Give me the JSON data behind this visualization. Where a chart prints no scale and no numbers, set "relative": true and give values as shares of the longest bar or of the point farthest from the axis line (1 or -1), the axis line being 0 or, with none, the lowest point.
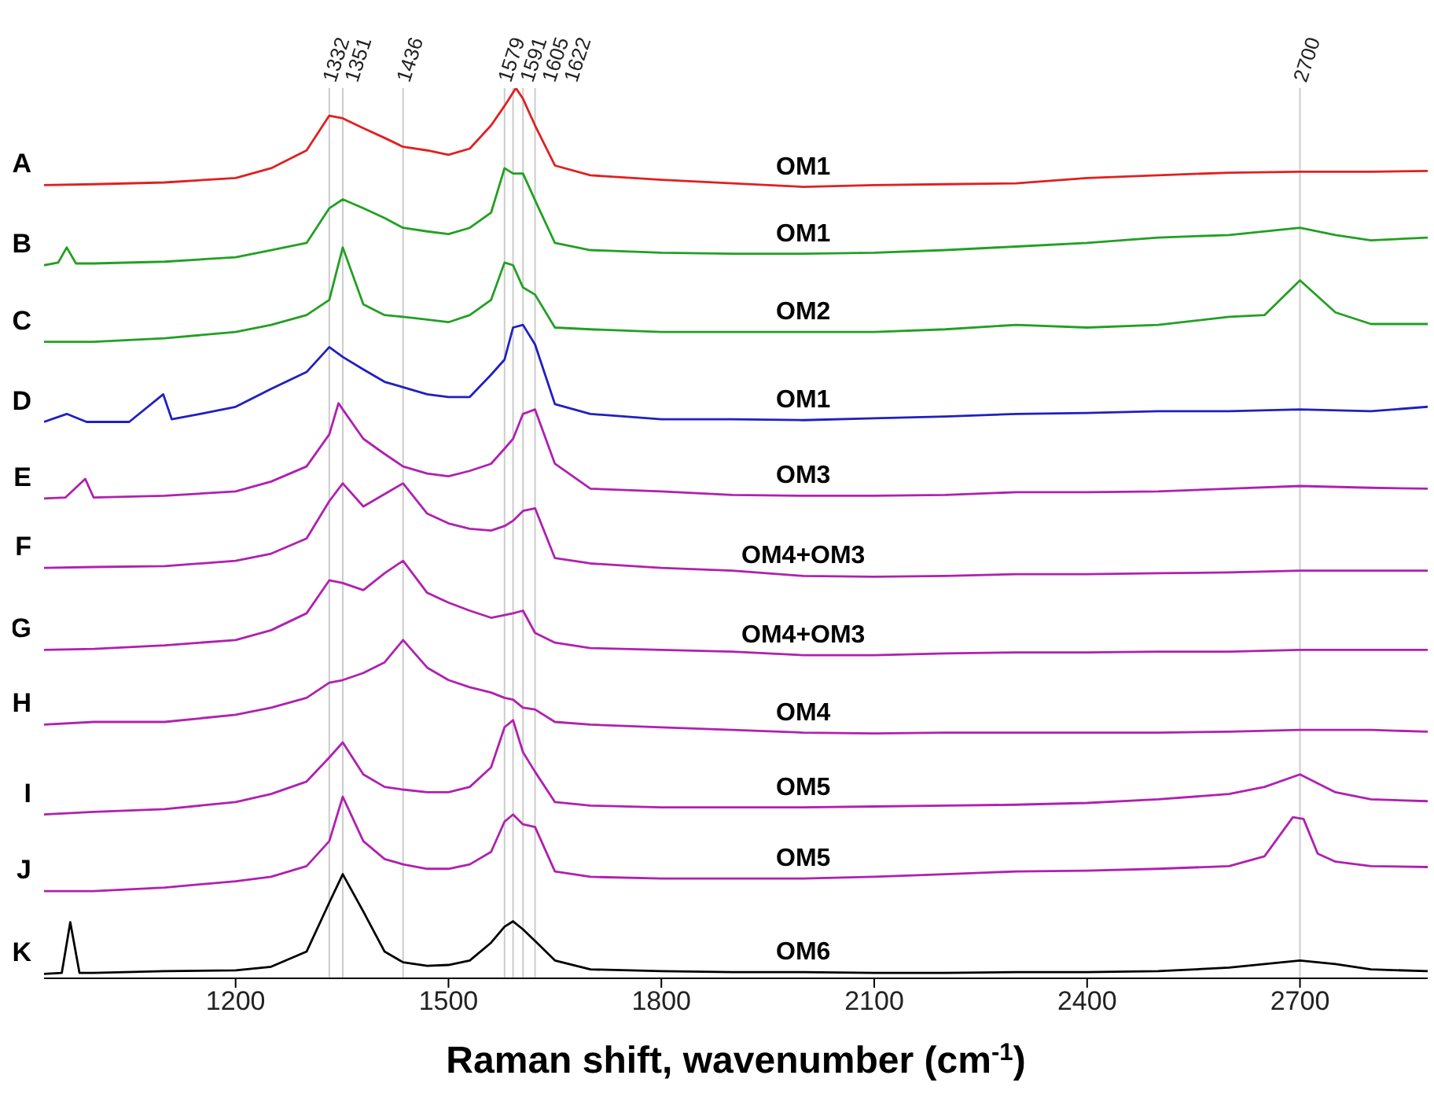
{
  "chart_data": {
    "type": "line",
    "relative": true,
    "xlabel": "Raman shift, wavenumber (cm$^{-1}$)",
    "xlim": [
      930,
      2880
    ],
    "xticks": [
      1200,
      1500,
      1800,
      2100,
      2400,
      2700
    ],
    "line_style": "solid",
    "ref_lines": [
      {
        "axis": "x",
        "value": 1332,
        "label": "1332",
        "color": "#cccccc"
      },
      {
        "axis": "x",
        "value": 1351,
        "label": "1351",
        "color": "#cccccc"
      },
      {
        "axis": "x",
        "value": 1436,
        "label": "1436",
        "color": "#cccccc"
      },
      {
        "axis": "x",
        "value": 1579,
        "label": "1579",
        "color": "#cccccc"
      },
      {
        "axis": "x",
        "value": 1591,
        "label": "1591",
        "color": "#cccccc"
      },
      {
        "axis": "x",
        "value": 1605,
        "label": "1605",
        "color": "#cccccc"
      },
      {
        "axis": "x",
        "value": 1622,
        "label": "1622",
        "color": "#cccccc"
      },
      {
        "axis": "x",
        "value": 2700,
        "label": "2700",
        "color": "#cccccc"
      }
    ],
    "annotations": [
      "OM1",
      "OM1",
      "OM2",
      "OM1",
      "OM3",
      "OM4+OM3",
      "OM4+OM3",
      "OM4",
      "OM5",
      "OM5",
      "OM6"
    ],
    "series": [
      {
        "name": "A",
        "color": "#e02020",
        "x": [
          930,
          1000,
          1100,
          1200,
          1250,
          1300,
          1332,
          1351,
          1380,
          1410,
          1436,
          1470,
          1500,
          1530,
          1560,
          1579,
          1595,
          1605,
          1622,
          1650,
          1700,
          1800,
          1900,
          2000,
          2100,
          2200,
          2300,
          2400,
          2500,
          2600,
          2700,
          2800,
          2880
        ],
        "values": [
          0.891,
          0.892,
          0.894,
          0.899,
          0.91,
          0.93,
          0.969,
          0.966,
          0.955,
          0.944,
          0.934,
          0.93,
          0.925,
          0.932,
          0.958,
          0.98,
          1,
          0.988,
          0.958,
          0.913,
          0.902,
          0.897,
          0.893,
          0.889,
          0.891,
          0.892,
          0.893,
          0.899,
          0.902,
          0.905,
          0.906,
          0.906,
          0.907
        ]
      },
      {
        "name": "B",
        "color": "#22a022",
        "x": [
          930,
          950,
          962,
          975,
          1000,
          1100,
          1200,
          1250,
          1300,
          1332,
          1351,
          1380,
          1410,
          1436,
          1470,
          1500,
          1530,
          1560,
          1579,
          1591,
          1605,
          1622,
          1650,
          1700,
          1800,
          1900,
          2000,
          2100,
          2200,
          2300,
          2400,
          2500,
          2600,
          2700,
          2750,
          2800,
          2880
        ],
        "values": [
          0.801,
          0.804,
          0.821,
          0.803,
          0.803,
          0.805,
          0.81,
          0.818,
          0.826,
          0.865,
          0.875,
          0.865,
          0.854,
          0.843,
          0.839,
          0.836,
          0.843,
          0.86,
          0.91,
          0.904,
          0.904,
          0.874,
          0.826,
          0.818,
          0.815,
          0.814,
          0.814,
          0.815,
          0.818,
          0.822,
          0.826,
          0.832,
          0.835,
          0.843,
          0.835,
          0.829,
          0.832
        ]
      },
      {
        "name": "C",
        "color": "#22a022",
        "x": [
          930,
          1000,
          1100,
          1200,
          1250,
          1300,
          1332,
          1351,
          1380,
          1410,
          1436,
          1470,
          1500,
          1530,
          1560,
          1579,
          1591,
          1605,
          1622,
          1650,
          1700,
          1800,
          1900,
          2000,
          2100,
          2200,
          2300,
          2400,
          2500,
          2600,
          2650,
          2700,
          2750,
          2800,
          2880
        ],
        "values": [
          0.715,
          0.715,
          0.719,
          0.726,
          0.734,
          0.745,
          0.762,
          0.821,
          0.757,
          0.745,
          0.743,
          0.74,
          0.737,
          0.745,
          0.762,
          0.804,
          0.801,
          0.776,
          0.768,
          0.731,
          0.729,
          0.726,
          0.726,
          0.726,
          0.726,
          0.729,
          0.734,
          0.731,
          0.734,
          0.743,
          0.745,
          0.784,
          0.748,
          0.735,
          0.735
        ]
      },
      {
        "name": "D",
        "color": "#2020c0",
        "x": [
          930,
          962,
          990,
          1050,
          1098,
          1110,
          1150,
          1200,
          1250,
          1300,
          1332,
          1351,
          1380,
          1410,
          1436,
          1470,
          1500,
          1530,
          1560,
          1579,
          1591,
          1605,
          1622,
          1650,
          1700,
          1800,
          1900,
          2000,
          2100,
          2200,
          2300,
          2400,
          2500,
          2600,
          2700,
          2800,
          2880
        ],
        "values": [
          0.625,
          0.634,
          0.625,
          0.625,
          0.656,
          0.628,
          0.634,
          0.642,
          0.662,
          0.681,
          0.709,
          0.698,
          0.684,
          0.67,
          0.664,
          0.656,
          0.653,
          0.653,
          0.678,
          0.695,
          0.731,
          0.734,
          0.712,
          0.645,
          0.634,
          0.628,
          0.628,
          0.627,
          0.629,
          0.631,
          0.634,
          0.635,
          0.637,
          0.637,
          0.639,
          0.637,
          0.642
        ]
      },
      {
        "name": "E",
        "color": "#b020b0",
        "x": [
          930,
          960,
          988,
          1000,
          1100,
          1200,
          1250,
          1300,
          1332,
          1345,
          1351,
          1380,
          1410,
          1436,
          1470,
          1500,
          1530,
          1560,
          1579,
          1591,
          1605,
          1622,
          1650,
          1700,
          1800,
          1900,
          2000,
          2100,
          2200,
          2300,
          2400,
          2500,
          2600,
          2700,
          2800,
          2880
        ],
        "values": [
          0.539,
          0.54,
          0.561,
          0.54,
          0.542,
          0.547,
          0.558,
          0.575,
          0.611,
          0.646,
          0.639,
          0.606,
          0.589,
          0.575,
          0.567,
          0.564,
          0.57,
          0.578,
          0.595,
          0.606,
          0.634,
          0.639,
          0.578,
          0.55,
          0.547,
          0.543,
          0.542,
          0.542,
          0.543,
          0.546,
          0.546,
          0.547,
          0.55,
          0.553,
          0.551,
          0.55
        ]
      },
      {
        "name": "F",
        "color": "#b020b0",
        "x": [
          930,
          1000,
          1100,
          1200,
          1250,
          1300,
          1332,
          1351,
          1380,
          1410,
          1436,
          1470,
          1500,
          1530,
          1560,
          1579,
          1591,
          1605,
          1622,
          1650,
          1700,
          1800,
          1900,
          2000,
          2100,
          2200,
          2300,
          2400,
          2500,
          2600,
          2700,
          2800,
          2880
        ],
        "values": [
          0.461,
          0.462,
          0.463,
          0.469,
          0.477,
          0.494,
          0.536,
          0.556,
          0.53,
          0.544,
          0.556,
          0.522,
          0.511,
          0.505,
          0.503,
          0.508,
          0.514,
          0.525,
          0.528,
          0.472,
          0.466,
          0.461,
          0.458,
          0.452,
          0.451,
          0.452,
          0.454,
          0.454,
          0.455,
          0.456,
          0.458,
          0.458,
          0.458
        ]
      },
      {
        "name": "G",
        "color": "#b020b0",
        "x": [
          930,
          1000,
          1100,
          1200,
          1250,
          1300,
          1332,
          1351,
          1380,
          1410,
          1436,
          1470,
          1500,
          1530,
          1560,
          1579,
          1591,
          1605,
          1622,
          1650,
          1700,
          1800,
          1900,
          2000,
          2100,
          2200,
          2300,
          2400,
          2500,
          2600,
          2700,
          2800,
          2880
        ],
        "values": [
          0.369,
          0.37,
          0.374,
          0.38,
          0.391,
          0.41,
          0.447,
          0.444,
          0.436,
          0.455,
          0.469,
          0.433,
          0.422,
          0.413,
          0.405,
          0.408,
          0.41,
          0.413,
          0.388,
          0.377,
          0.371,
          0.369,
          0.367,
          0.363,
          0.363,
          0.365,
          0.366,
          0.366,
          0.367,
          0.367,
          0.369,
          0.369,
          0.369
        ]
      },
      {
        "name": "H",
        "color": "#b020b0",
        "x": [
          930,
          1000,
          1100,
          1200,
          1250,
          1300,
          1332,
          1351,
          1380,
          1410,
          1436,
          1470,
          1500,
          1530,
          1560,
          1579,
          1591,
          1605,
          1622,
          1650,
          1700,
          1800,
          1900,
          2000,
          2100,
          2200,
          2300,
          2400,
          2500,
          2600,
          2700,
          2800,
          2880
        ],
        "values": [
          0.285,
          0.288,
          0.288,
          0.296,
          0.304,
          0.315,
          0.332,
          0.335,
          0.343,
          0.355,
          0.38,
          0.349,
          0.335,
          0.327,
          0.321,
          0.315,
          0.313,
          0.304,
          0.302,
          0.288,
          0.285,
          0.282,
          0.279,
          0.276,
          0.275,
          0.276,
          0.276,
          0.276,
          0.276,
          0.277,
          0.279,
          0.279,
          0.277
        ]
      },
      {
        "name": "I",
        "color": "#b020b0",
        "x": [
          930,
          1000,
          1100,
          1200,
          1250,
          1300,
          1332,
          1351,
          1380,
          1410,
          1436,
          1470,
          1500,
          1530,
          1560,
          1579,
          1591,
          1605,
          1622,
          1650,
          1700,
          1800,
          1900,
          2000,
          2100,
          2200,
          2300,
          2400,
          2500,
          2600,
          2650,
          2700,
          2750,
          2800,
          2880
        ],
        "values": [
          0.184,
          0.187,
          0.19,
          0.198,
          0.207,
          0.221,
          0.248,
          0.265,
          0.229,
          0.215,
          0.212,
          0.209,
          0.209,
          0.215,
          0.237,
          0.282,
          0.29,
          0.254,
          0.232,
          0.198,
          0.194,
          0.192,
          0.192,
          0.192,
          0.193,
          0.194,
          0.195,
          0.197,
          0.201,
          0.207,
          0.215,
          0.229,
          0.209,
          0.201,
          0.199
        ]
      },
      {
        "name": "J",
        "color": "#b020b0",
        "x": [
          930,
          1000,
          1100,
          1200,
          1250,
          1300,
          1332,
          1351,
          1380,
          1410,
          1436,
          1470,
          1500,
          1530,
          1560,
          1579,
          1591,
          1605,
          1622,
          1650,
          1700,
          1800,
          1900,
          2000,
          2100,
          2200,
          2300,
          2400,
          2500,
          2600,
          2650,
          2690,
          2705,
          2725,
          2750,
          2800,
          2880
        ],
        "values": [
          0.098,
          0.098,
          0.102,
          0.109,
          0.114,
          0.126,
          0.154,
          0.204,
          0.154,
          0.134,
          0.128,
          0.123,
          0.123,
          0.128,
          0.142,
          0.176,
          0.184,
          0.173,
          0.17,
          0.12,
          0.114,
          0.112,
          0.112,
          0.112,
          0.114,
          0.117,
          0.12,
          0.121,
          0.123,
          0.126,
          0.137,
          0.181,
          0.179,
          0.14,
          0.131,
          0.126,
          0.125
        ]
      },
      {
        "name": "K",
        "color": "#000000",
        "x": [
          930,
          955,
          967,
          980,
          1000,
          1100,
          1200,
          1250,
          1300,
          1332,
          1351,
          1380,
          1410,
          1436,
          1470,
          1500,
          1530,
          1560,
          1579,
          1591,
          1605,
          1622,
          1650,
          1700,
          1800,
          1900,
          2000,
          2100,
          2200,
          2300,
          2400,
          2500,
          2600,
          2650,
          2700,
          2750,
          2800,
          2880
        ],
        "values": [
          0.005,
          0.006,
          0.063,
          0.006,
          0.006,
          0.008,
          0.009,
          0.013,
          0.03,
          0.085,
          0.117,
          0.075,
          0.03,
          0.018,
          0.014,
          0.015,
          0.02,
          0.04,
          0.058,
          0.064,
          0.055,
          0.042,
          0.02,
          0.01,
          0.008,
          0.007,
          0.007,
          0.006,
          0.006,
          0.007,
          0.007,
          0.008,
          0.012,
          0.016,
          0.02,
          0.016,
          0.01,
          0.008
        ]
      }
    ]
  }
}
